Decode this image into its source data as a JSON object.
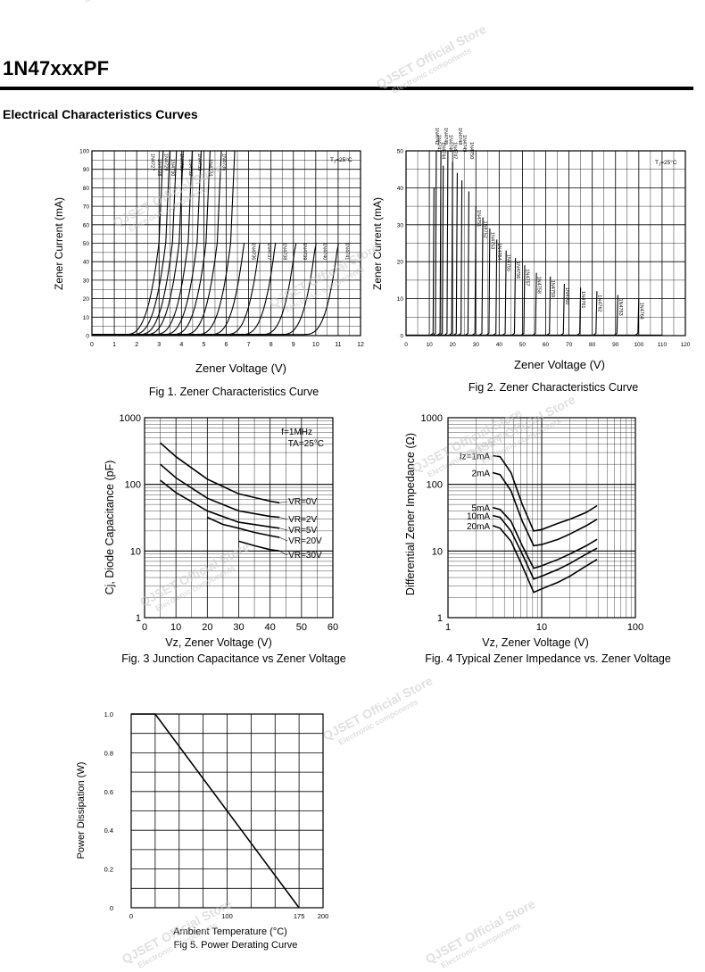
{
  "document": {
    "title": "1N47xxxPF",
    "section_heading": "Electrical Characteristics Curves"
  },
  "watermark": {
    "store": "QJSET Official Store",
    "tagline": "Electronic components"
  },
  "chart_data": [
    {
      "id": "fig1",
      "type": "line",
      "title": "Fig 1. Zener Characteristics Curve",
      "xlabel": "Zener Voltage (V)",
      "ylabel": "Zener Current (mA)",
      "xlim": [
        0,
        12
      ],
      "ylim": [
        0,
        100
      ],
      "x_ticks": [
        0,
        1,
        2,
        3,
        4,
        5,
        6,
        7,
        8,
        9,
        10,
        11,
        12
      ],
      "y_ticks": [
        0,
        10,
        20,
        30,
        40,
        50,
        60,
        70,
        80,
        90,
        100
      ],
      "grid": true,
      "annotation": "TJ=25°C",
      "series": [
        {
          "name": "1N4727",
          "vz": 3.0,
          "imax": 100
        },
        {
          "name": "1N4728",
          "vz": 3.3,
          "imax": 100
        },
        {
          "name": "1N4729",
          "vz": 3.6,
          "imax": 100
        },
        {
          "name": "1N4730",
          "vz": 3.9,
          "imax": 100
        },
        {
          "name": "1N4731",
          "vz": 4.3,
          "imax": 100
        },
        {
          "name": "1N4732",
          "vz": 4.7,
          "imax": 100
        },
        {
          "name": "1N4733",
          "vz": 5.1,
          "imax": 100
        },
        {
          "name": "1N4734",
          "vz": 5.6,
          "imax": 100
        },
        {
          "name": "1N4735",
          "vz": 6.2,
          "imax": 100
        },
        {
          "name": "1N4736",
          "vz": 6.8,
          "imax": 50
        },
        {
          "name": "1N4737",
          "vz": 7.5,
          "imax": 50
        },
        {
          "name": "1N4738",
          "vz": 8.2,
          "imax": 50
        },
        {
          "name": "1N4739",
          "vz": 9.1,
          "imax": 50
        },
        {
          "name": "1N4740",
          "vz": 10.0,
          "imax": 50
        },
        {
          "name": "1N4741",
          "vz": 11.0,
          "imax": 50
        }
      ]
    },
    {
      "id": "fig2",
      "type": "line",
      "title": "Fig 2. Zener Characteristics Curve",
      "xlabel": "Zener Voltage (V)",
      "ylabel": "Zener Current (mA)",
      "xlim": [
        0,
        120
      ],
      "ylim": [
        0,
        50
      ],
      "x_ticks": [
        0,
        10,
        20,
        30,
        40,
        50,
        60,
        70,
        80,
        90,
        100,
        110,
        120
      ],
      "y_ticks": [
        0,
        10,
        20,
        30,
        40,
        50
      ],
      "grid": true,
      "annotation": "TJ=25°C",
      "series": [
        {
          "name": "1N4742",
          "vz": 12,
          "imax": 40
        },
        {
          "name": "1N4743",
          "vz": 13,
          "imax": 50
        },
        {
          "name": "1N4744",
          "vz": 15,
          "imax": 50
        },
        {
          "name": "1N4745",
          "vz": 16,
          "imax": 46
        },
        {
          "name": "1N4746",
          "vz": 18,
          "imax": 50
        },
        {
          "name": "1N4747",
          "vz": 20,
          "imax": 47
        },
        {
          "name": "1N4748",
          "vz": 22,
          "imax": 44
        },
        {
          "name": "1N4749",
          "vz": 24,
          "imax": 42
        },
        {
          "name": "1N4750",
          "vz": 27,
          "imax": 39
        },
        {
          "name": "1N4751",
          "vz": 30,
          "imax": 35
        },
        {
          "name": "1N4752",
          "vz": 33,
          "imax": 32
        },
        {
          "name": "1N4753",
          "vz": 36,
          "imax": 29
        },
        {
          "name": "1N4754",
          "vz": 39,
          "imax": 26
        },
        {
          "name": "1N4755",
          "vz": 43,
          "imax": 23
        },
        {
          "name": "1N4756",
          "vz": 47,
          "imax": 21
        },
        {
          "name": "1N4757",
          "vz": 51,
          "imax": 19
        },
        {
          "name": "1N4758",
          "vz": 56,
          "imax": 17
        },
        {
          "name": "1N4759",
          "vz": 62,
          "imax": 16
        },
        {
          "name": "1N4760",
          "vz": 68,
          "imax": 14
        },
        {
          "name": "1N4761",
          "vz": 75,
          "imax": 13
        },
        {
          "name": "1N4762",
          "vz": 82,
          "imax": 12
        },
        {
          "name": "1N4763",
          "vz": 91,
          "imax": 11
        },
        {
          "name": "1N4764",
          "vz": 100,
          "imax": 10
        }
      ]
    },
    {
      "id": "fig3",
      "type": "line",
      "title": "Fig. 3 Junction Capacitance vs Zener Voltage",
      "xlabel": "Vz, Zener Voltage (V)",
      "ylabel": "Cj, Diode Capacitance (pF)",
      "xlim": [
        0,
        60
      ],
      "ylim": [
        1,
        1000
      ],
      "yscale": "log",
      "x_ticks": [
        0,
        10,
        20,
        30,
        40,
        50,
        60
      ],
      "y_ticks": [
        1,
        10,
        100,
        1000
      ],
      "grid": true,
      "annotations": [
        "f=1MHz",
        "TA=25°C"
      ],
      "series": [
        {
          "name": "VR=0V",
          "x": [
            5,
            10,
            20,
            30,
            40,
            43
          ],
          "y": [
            420,
            260,
            120,
            72,
            56,
            53
          ]
        },
        {
          "name": "VR=2V",
          "x": [
            5,
            10,
            20,
            30,
            40,
            43
          ],
          "y": [
            200,
            125,
            62,
            40,
            33,
            32
          ]
        },
        {
          "name": "VR=5V",
          "x": [
            5,
            10,
            20,
            30,
            40,
            43
          ],
          "y": [
            115,
            75,
            40,
            27,
            23,
            22
          ]
        },
        {
          "name": "VR=20V",
          "x": [
            20,
            25,
            30,
            35,
            40,
            43
          ],
          "y": [
            32,
            25,
            22,
            19,
            17,
            16
          ]
        },
        {
          "name": "VR=30V",
          "x": [
            30,
            35,
            40,
            43
          ],
          "y": [
            14,
            12,
            10.5,
            10
          ]
        }
      ]
    },
    {
      "id": "fig4",
      "type": "line",
      "title": "Fig. 4 Typical Zener Impedance vs. Zener Voltage",
      "xlabel": "Vz, Zener Voltage (V)",
      "ylabel": "Differential Zener Impedance (Ω)",
      "xlim": [
        1,
        100
      ],
      "ylim": [
        1,
        1000
      ],
      "xscale": "log",
      "yscale": "log",
      "x_ticks": [
        1,
        10,
        100
      ],
      "y_ticks": [
        1,
        10,
        100,
        1000
      ],
      "grid": true,
      "series": [
        {
          "name": "Iz=1mA",
          "x": [
            3,
            3.6,
            4.7,
            6.2,
            8.2,
            10,
            15,
            20,
            30,
            39
          ],
          "y": [
            270,
            260,
            150,
            50,
            20,
            21,
            26,
            30,
            38,
            48
          ]
        },
        {
          "name": "2mA",
          "x": [
            3,
            3.6,
            4.7,
            6.2,
            8.2,
            10,
            15,
            20,
            30,
            39
          ],
          "y": [
            150,
            140,
            80,
            28,
            12,
            12.5,
            15,
            18,
            24,
            30
          ]
        },
        {
          "name": "5mA",
          "x": [
            3,
            3.6,
            4.7,
            6.2,
            8.2,
            10,
            15,
            20,
            30,
            39
          ],
          "y": [
            45,
            42,
            28,
            12,
            5.5,
            6,
            7.5,
            9,
            12,
            15
          ]
        },
        {
          "name": "10mA",
          "x": [
            3,
            3.6,
            4.7,
            6.2,
            8.2,
            10,
            15,
            20,
            30,
            39
          ],
          "y": [
            34,
            32,
            20,
            9,
            3.8,
            4.2,
            5.3,
            6.5,
            9,
            11
          ]
        },
        {
          "name": "20mA",
          "x": [
            3,
            3.6,
            4.7,
            6.2,
            8.2,
            10,
            15,
            20,
            30,
            39
          ],
          "y": [
            24,
            22,
            14,
            6,
            2.4,
            2.7,
            3.4,
            4.2,
            6,
            7.5
          ]
        }
      ]
    },
    {
      "id": "fig5",
      "type": "line",
      "title": "Fig 5. Power Derating Curve",
      "xlabel": "Ambient Temperature (°C)",
      "ylabel": "Power Dissipation (W)",
      "xlim": [
        0,
        200
      ],
      "ylim": [
        0,
        1.0
      ],
      "x_ticks": [
        0,
        100,
        175,
        200
      ],
      "y_tick_values": [
        0,
        0.2,
        0.4,
        0.6,
        0.8,
        1.0
      ],
      "y_tick_labels": [
        "0",
        "0.2",
        "0.4",
        "0.6",
        "0.8",
        "1.0"
      ],
      "grid": true,
      "series": [
        {
          "x": [
            0,
            25,
            175
          ],
          "y": [
            1.0,
            1.0,
            0
          ]
        }
      ]
    }
  ]
}
